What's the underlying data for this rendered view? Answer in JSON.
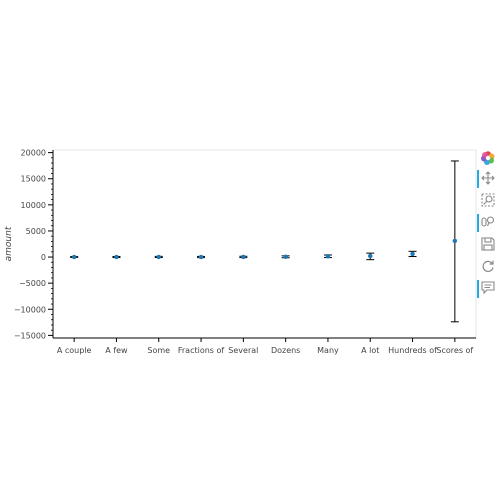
{
  "chart_data": {
    "type": "scatter",
    "subtype": "error-bar",
    "title": "",
    "xlabel": "",
    "ylabel": "amount",
    "categories": [
      "A couple",
      "A few",
      "Some",
      "Fractions of",
      "Several",
      "Dozens",
      "Many",
      "A lot",
      "Hundreds of",
      "Scores of"
    ],
    "values": [
      10,
      10,
      15,
      5,
      25,
      50,
      150,
      200,
      600,
      3100
    ],
    "lower": [
      -60,
      -80,
      -90,
      -110,
      -100,
      -130,
      -100,
      -500,
      100,
      -12400
    ],
    "upper": [
      90,
      100,
      130,
      120,
      150,
      230,
      400,
      750,
      1100,
      18400
    ],
    "y_ticks": [
      20000,
      15000,
      10000,
      5000,
      0,
      -5000,
      -10000,
      -15000
    ],
    "y_tick_labels": [
      "20000",
      "15000",
      "10000",
      "5000",
      "0",
      "−5000",
      "−10000",
      "−15000"
    ],
    "ylim": [
      -15500,
      20500
    ],
    "grid": false,
    "legend": "none",
    "colors": {
      "point": "#1f77b4",
      "whisker": "#000000",
      "axis": "#000000",
      "outline": "#e5e5e5",
      "tool_active": "#26aae1",
      "tool_icon": "#888888"
    }
  },
  "toolbar": {
    "tools": [
      {
        "name": "logo",
        "icon": "bokeh-logo-icon",
        "active": false
      },
      {
        "name": "pan",
        "icon": "pan-icon",
        "active": true
      },
      {
        "name": "box-zoom",
        "icon": "box-zoom-icon",
        "active": false
      },
      {
        "name": "wheel-zoom",
        "icon": "wheel-zoom-icon",
        "active": true
      },
      {
        "name": "save",
        "icon": "save-icon",
        "active": false
      },
      {
        "name": "reset",
        "icon": "reset-icon",
        "active": false
      },
      {
        "name": "hover",
        "icon": "hover-icon",
        "active": true
      }
    ]
  }
}
